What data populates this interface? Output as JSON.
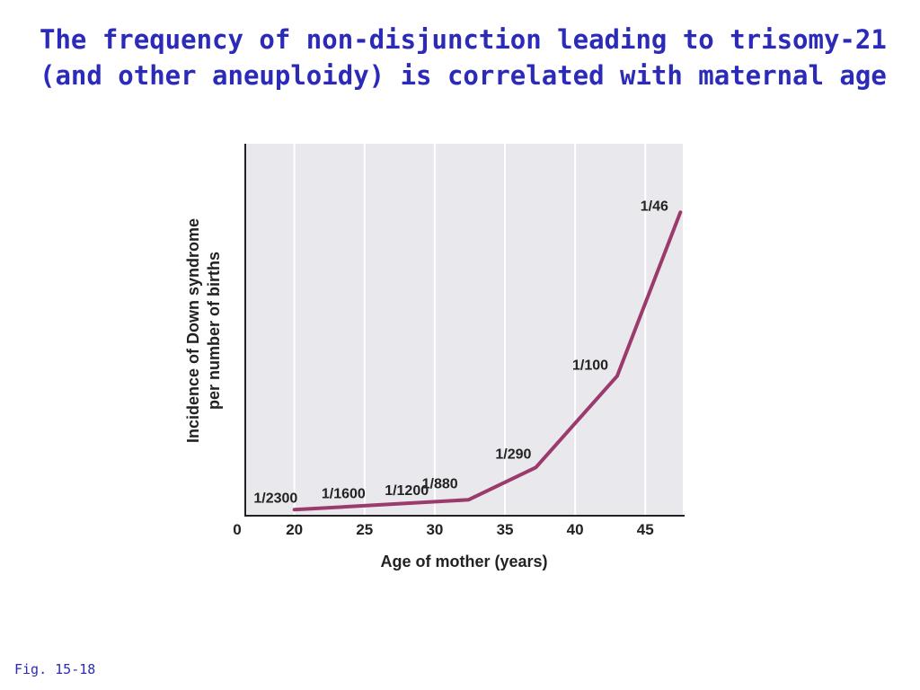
{
  "slide": {
    "title_line1": "The frequency of non-disjunction leading to trisomy-21",
    "title_line2": "(and other aneuploidy) is correlated with maternal age",
    "figure_note": "Fig. 15-18"
  },
  "colors": {
    "title": "#2b2bb8",
    "line": "#9b3a6c",
    "plot_background": "#e9e8ec",
    "grid": "#ffffff",
    "axis": "#222222"
  },
  "chart_data": {
    "type": "line",
    "title": "",
    "xlabel": "Age of mother (years)",
    "ylabel": "Incidence of Down syndrome per number of births",
    "ylabel_lines": [
      "Incidence of Down syndrome",
      "per number of births"
    ],
    "x_origin_label": "0",
    "x_ticks": [
      20,
      25,
      30,
      35,
      40,
      45
    ],
    "x_tick_labels": [
      "20",
      "25",
      "30",
      "35",
      "40",
      "45"
    ],
    "xlim": [
      16.5,
      47.8
    ],
    "ylim": [
      0,
      0.0266
    ],
    "y_ticks_shown": false,
    "grid": "vertical",
    "series": [
      {
        "x": [
          20,
          32.4,
          37.2,
          43,
          47.5
        ],
        "y": [
          0.00043,
          0.00114,
          0.00345,
          0.01,
          0.0217
        ]
      }
    ],
    "annotations": [
      {
        "text": "1/2300",
        "x": 19.5,
        "y": 0.00043
      },
      {
        "text": "1/1600",
        "x": 23.5,
        "y": 0.000625
      },
      {
        "text": "1/1200",
        "x": 28,
        "y": 0.00083
      },
      {
        "text": "1/880",
        "x": 31.2,
        "y": 0.00114
      },
      {
        "text": "1/290",
        "x": 37.2,
        "y": 0.00345
      },
      {
        "text": "1/100",
        "x": 43,
        "y": 0.01
      },
      {
        "text": "1/46",
        "x": 47.5,
        "y": 0.0217
      }
    ]
  }
}
